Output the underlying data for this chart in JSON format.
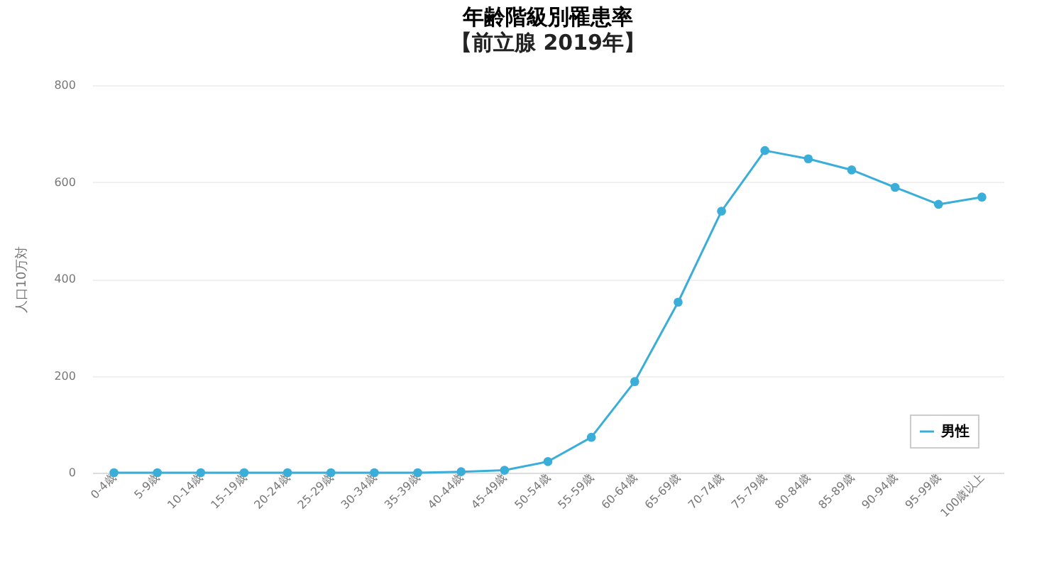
{
  "chart_data": {
    "type": "line",
    "title": "年齢階級別罹患率",
    "subtitle": "【前立腺 2019年】",
    "ylabel": "人口10万対",
    "categories": [
      "0-4歳",
      "5-9歳",
      "10-14歳",
      "15-19歳",
      "20-24歳",
      "25-29歳",
      "30-34歳",
      "35-39歳",
      "40-44歳",
      "45-49歳",
      "50-54歳",
      "55-59歳",
      "60-64歳",
      "65-69歳",
      "70-74歳",
      "75-79歳",
      "80-84歳",
      "85-89歳",
      "90-94歳",
      "95-99歳",
      "100歳以上"
    ],
    "series": [
      {
        "name": "男性",
        "color": "#3aaed8",
        "values": [
          0,
          0,
          0,
          0,
          0,
          0,
          0,
          0,
          2,
          5,
          23,
          73,
          188,
          352,
          540,
          665,
          648,
          625,
          589,
          554,
          569
        ]
      }
    ],
    "ylim": [
      0,
      800
    ],
    "yticks": [
      0,
      200,
      400,
      600,
      800
    ],
    "grid": "y",
    "legend": "bottom right",
    "marker": "circle"
  }
}
